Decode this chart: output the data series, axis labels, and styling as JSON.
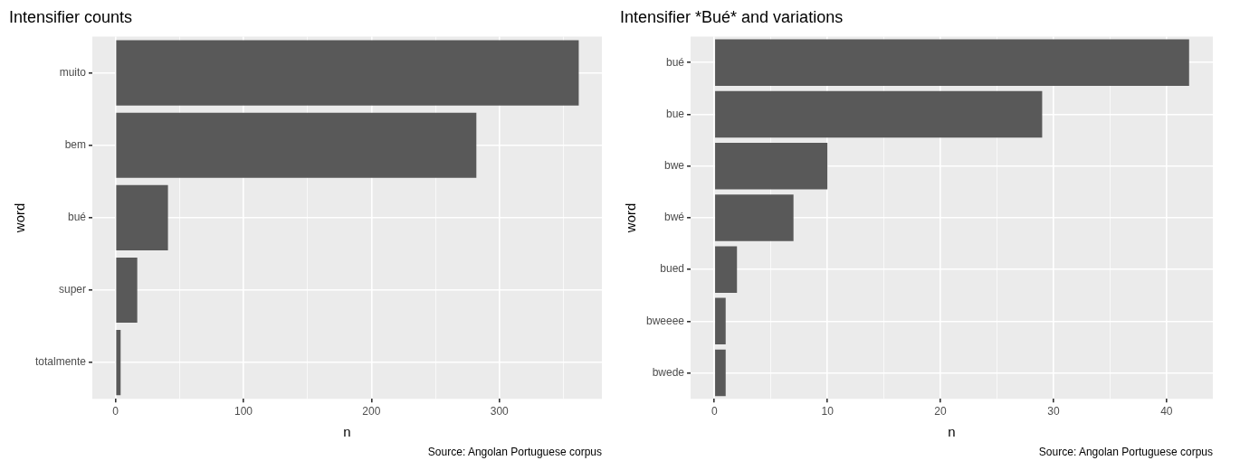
{
  "chart_data": [
    {
      "type": "bar",
      "orientation": "horizontal",
      "title": "Intensifier counts",
      "xlabel": "n",
      "ylabel": "word",
      "categories": [
        "muito",
        "bem",
        "bué",
        "super",
        "totalmente"
      ],
      "values": [
        362,
        282,
        41,
        17,
        4
      ],
      "color": "#595959",
      "xlim": [
        -18.1,
        380.1
      ],
      "xticks": [
        0,
        {
          "value": 50,
          "label": null
        },
        100,
        {
          "value": 150,
          "label": null
        },
        200,
        {
          "value": 250,
          "label": null
        },
        300,
        {
          "value": 350,
          "label": null
        }
      ],
      "grid": true,
      "legend": false,
      "annotations": [
        "Source: Angolan Portuguese corpus"
      ]
    },
    {
      "type": "bar",
      "orientation": "horizontal",
      "title": "Intensifier *Bué* and variations",
      "xlabel": "n",
      "ylabel": "word",
      "categories": [
        "bué",
        "bue",
        "bwe",
        "bwé",
        "bued",
        "bweeee",
        "bwede"
      ],
      "values": [
        42,
        29,
        10,
        7,
        2,
        1,
        1
      ],
      "color": "#595959",
      "xlim": [
        -2.1,
        44.1
      ],
      "xticks": [
        0,
        {
          "value": 5,
          "label": null
        },
        10,
        {
          "value": 15,
          "label": null
        },
        20,
        {
          "value": 25,
          "label": null
        },
        30,
        {
          "value": 35,
          "label": null
        },
        40
      ],
      "grid": true,
      "legend": false,
      "annotations": [
        "Source: Angolan Portuguese corpus"
      ]
    }
  ]
}
